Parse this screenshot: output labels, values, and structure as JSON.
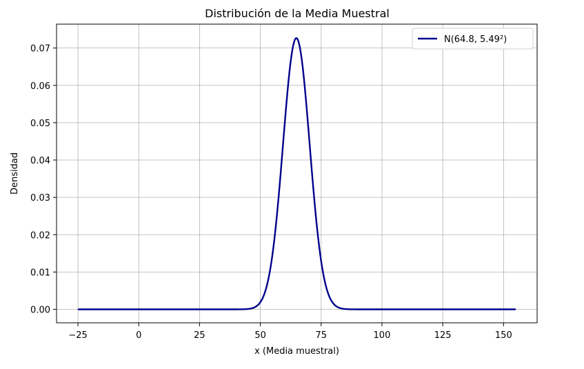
{
  "chart_data": {
    "type": "line",
    "title": "Distribución de la Media Muestral",
    "xlabel": "x (Media muestral)",
    "ylabel": "Densidad",
    "xlim": [
      -33.8,
      163.8
    ],
    "ylim": [
      -0.0036,
      0.0764
    ],
    "xticks": [
      -25,
      0,
      25,
      50,
      75,
      100,
      125,
      150
    ],
    "xtick_labels": [
      "−25",
      "0",
      "25",
      "50",
      "75",
      "100",
      "125",
      "150"
    ],
    "yticks": [
      0.0,
      0.01,
      0.02,
      0.03,
      0.04,
      0.05,
      0.06,
      0.07
    ],
    "ytick_labels": [
      "0.00",
      "0.01",
      "0.02",
      "0.03",
      "0.04",
      "0.05",
      "0.06",
      "0.07"
    ],
    "grid": true,
    "legend_position": "top-right",
    "series": [
      {
        "name": "N(64.8, 5.49²)",
        "color": "#00008b",
        "distribution": "normal",
        "mean": 64.8,
        "sd": 5.49,
        "x_range": [
          -25,
          155
        ]
      }
    ]
  }
}
